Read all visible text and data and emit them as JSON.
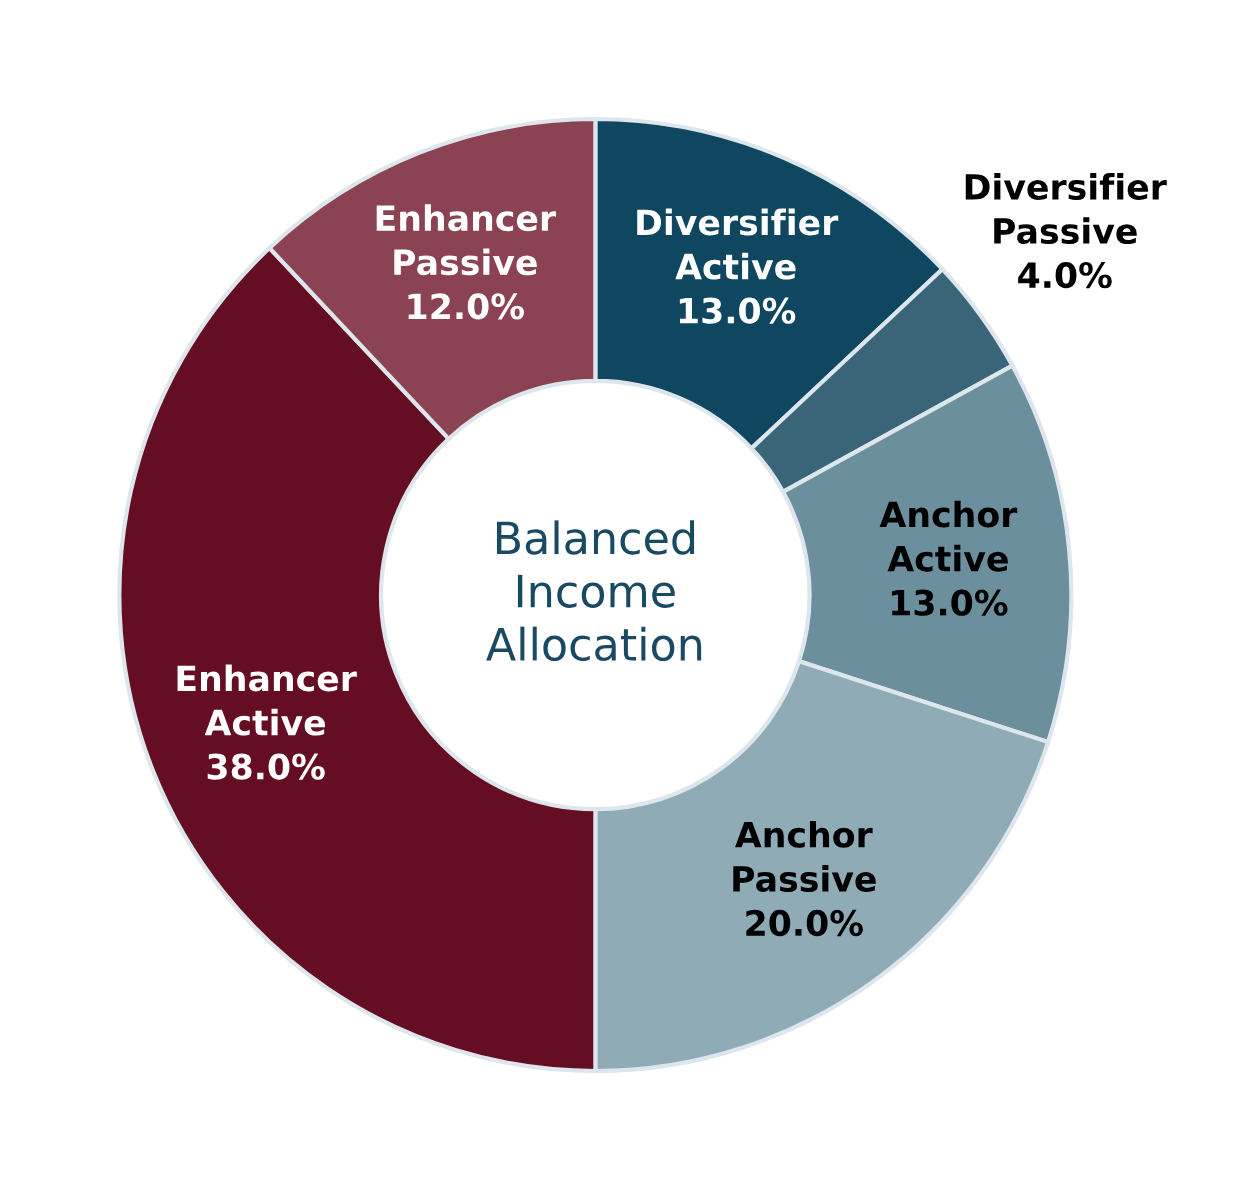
{
  "chart_data": {
    "type": "donut",
    "title": "Balanced\nIncome\nAllocation",
    "categories": [
      "Diversifier\nActive",
      "Diversifier\nPassive",
      "Anchor\nActive",
      "Anchor\nPassive",
      "Enhancer\nActive",
      "Enhancer\nPassive"
    ],
    "values": [
      13.0,
      4.0,
      13.0,
      20.0,
      38.0,
      12.0
    ],
    "value_labels": [
      "13.0%",
      "4.0%",
      "13.0%",
      "20.0%",
      "38.0%",
      "12.0%"
    ],
    "colors": [
      "#0f4660",
      "#3a6478",
      "#6b8f9c",
      "#8fabb5",
      "#650d22",
      "#8b4353"
    ],
    "legend": false
  }
}
